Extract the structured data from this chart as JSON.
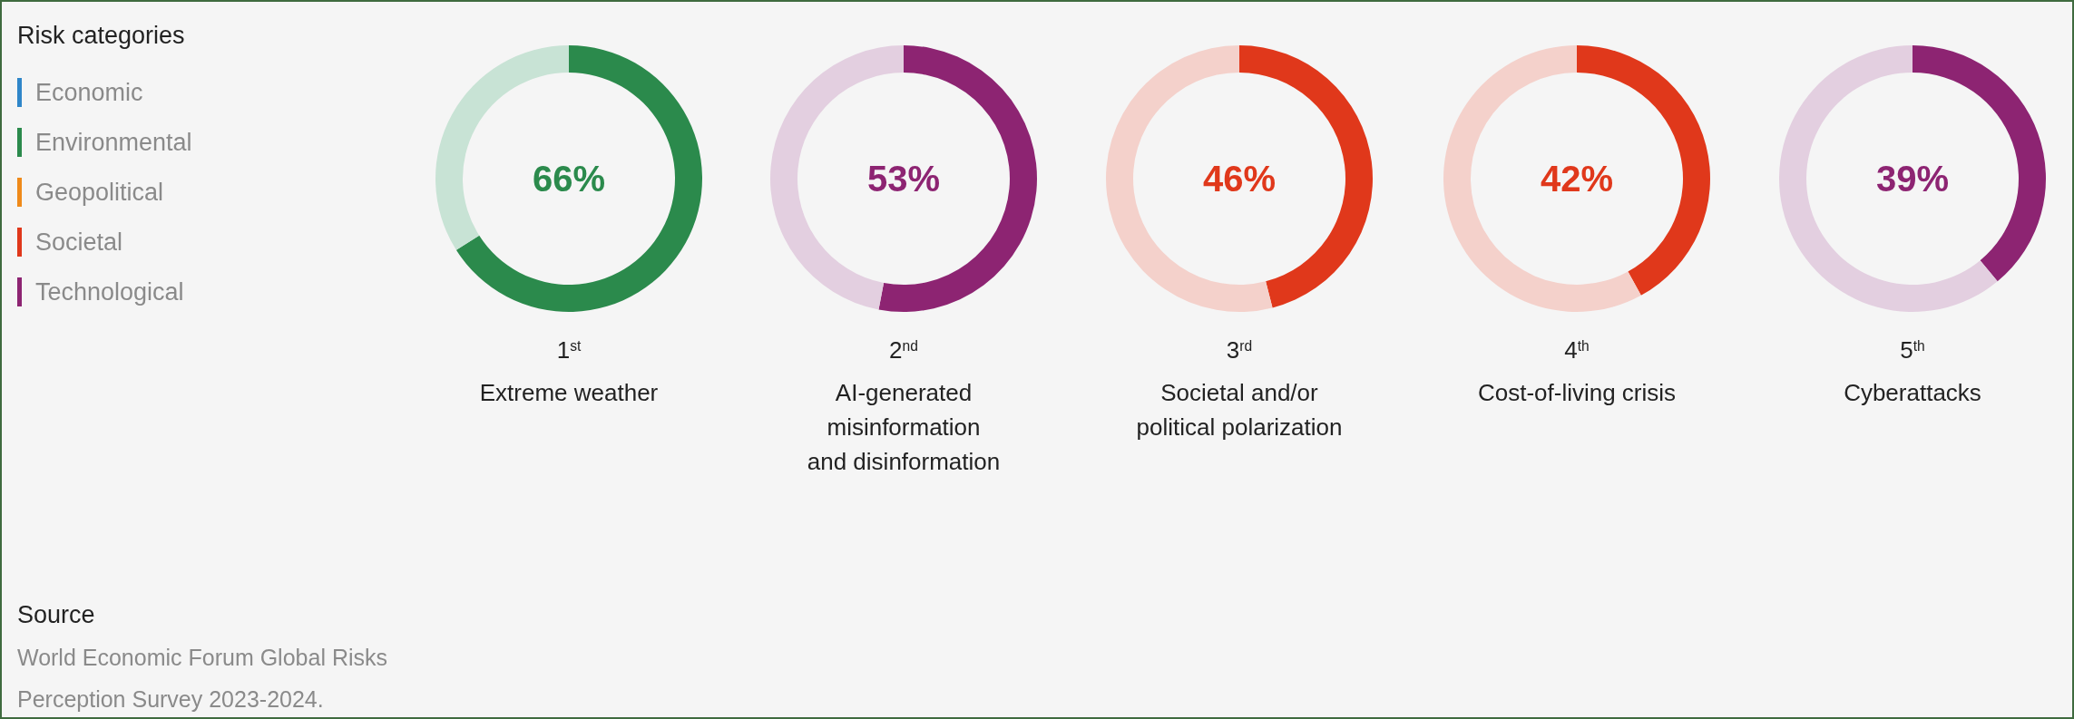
{
  "chart_data": [
    {
      "type": "other",
      "title": "Risk categories",
      "categories": [
        "Economic",
        "Environmental",
        "Geopolitical",
        "Societal",
        "Technological"
      ],
      "colors": [
        "#2f86c9",
        "#2b8a4c",
        "#ef8a1a",
        "#e0381b",
        "#8d2472"
      ],
      "annotations": [
        "Source",
        "World Economic Forum Global Risks\nPerception Survey 2023-2024."
      ]
    },
    {
      "type": "donut",
      "title": "1$^{st}$",
      "subtitle": "Extreme weather",
      "categories": [
        null,
        null
      ],
      "values": [
        66,
        34
      ],
      "colors": [
        "#2b8a4c",
        "#c8e3d5"
      ],
      "annotations": [
        "66%"
      ]
    },
    {
      "type": "donut",
      "title": "2$^{nd}$",
      "subtitle": "AI-generated\nmisinformation\nand disinformation",
      "categories": [
        null,
        null
      ],
      "values": [
        53,
        47
      ],
      "colors": [
        "#8d2472",
        "#e3cfe0"
      ],
      "annotations": [
        "53%"
      ]
    },
    {
      "type": "donut",
      "title": "3$^{rd}$",
      "subtitle": "Societal and/or\npolitical polarization",
      "categories": [
        null,
        null
      ],
      "values": [
        46,
        54
      ],
      "colors": [
        "#e0381b",
        "#f4d1cb"
      ],
      "annotations": [
        "46%"
      ]
    },
    {
      "type": "donut",
      "title": "4$^{th}$",
      "subtitle": "Cost-of-living crisis",
      "categories": [
        null,
        null
      ],
      "values": [
        42,
        58
      ],
      "colors": [
        "#e0381b",
        "#f4d1cb"
      ],
      "annotations": [
        "42%"
      ]
    },
    {
      "type": "donut",
      "title": "5$^{th}$",
      "subtitle": "Cyberattacks",
      "categories": [
        null,
        null
      ],
      "values": [
        39,
        61
      ],
      "colors": [
        "#8d2472",
        "#e3cfe0"
      ],
      "annotations": [
        "39%"
      ]
    }
  ]
}
